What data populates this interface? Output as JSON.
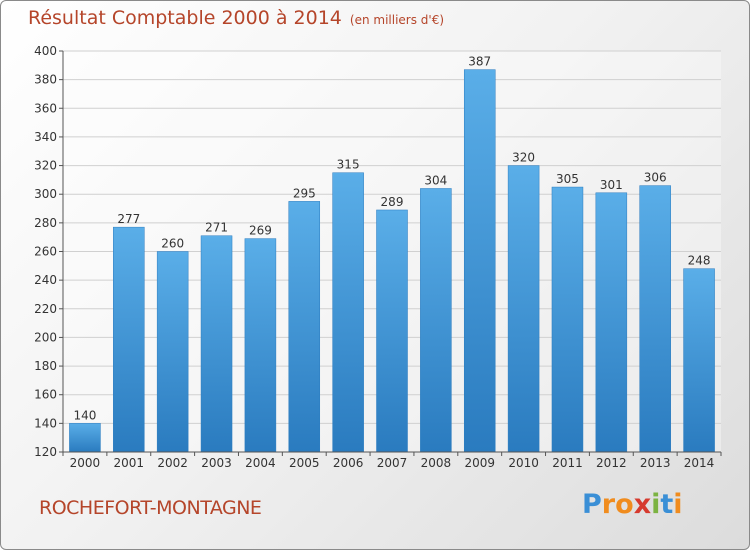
{
  "title": "Résultat Comptable 2000 à 2014",
  "unit": "(en milliers d'€)",
  "commune": "ROCHEFORT-MONTAGNE",
  "logo": {
    "letters": [
      "P",
      "r",
      "o",
      "x",
      "i",
      "t",
      "i"
    ],
    "colors": [
      "#3a8fd6",
      "#f08c1e",
      "#f08c1e",
      "#d63a2e",
      "#7cb342",
      "#3a8fd6",
      "#f08c1e"
    ]
  },
  "chart_data": {
    "type": "bar",
    "categories": [
      "2000",
      "2001",
      "2002",
      "2003",
      "2004",
      "2005",
      "2006",
      "2007",
      "2008",
      "2009",
      "2010",
      "2011",
      "2012",
      "2013",
      "2014"
    ],
    "values": [
      140,
      277,
      260,
      271,
      269,
      295,
      315,
      289,
      304,
      387,
      320,
      305,
      301,
      306,
      248
    ],
    "ylim": [
      120,
      400
    ],
    "yticks": [
      120,
      140,
      160,
      180,
      200,
      220,
      240,
      260,
      280,
      300,
      320,
      340,
      360,
      380,
      400
    ],
    "grid": true,
    "bar_color_top": "#5aaee8",
    "bar_color_bottom": "#2a7bbf",
    "label_color": "#b5452a"
  }
}
